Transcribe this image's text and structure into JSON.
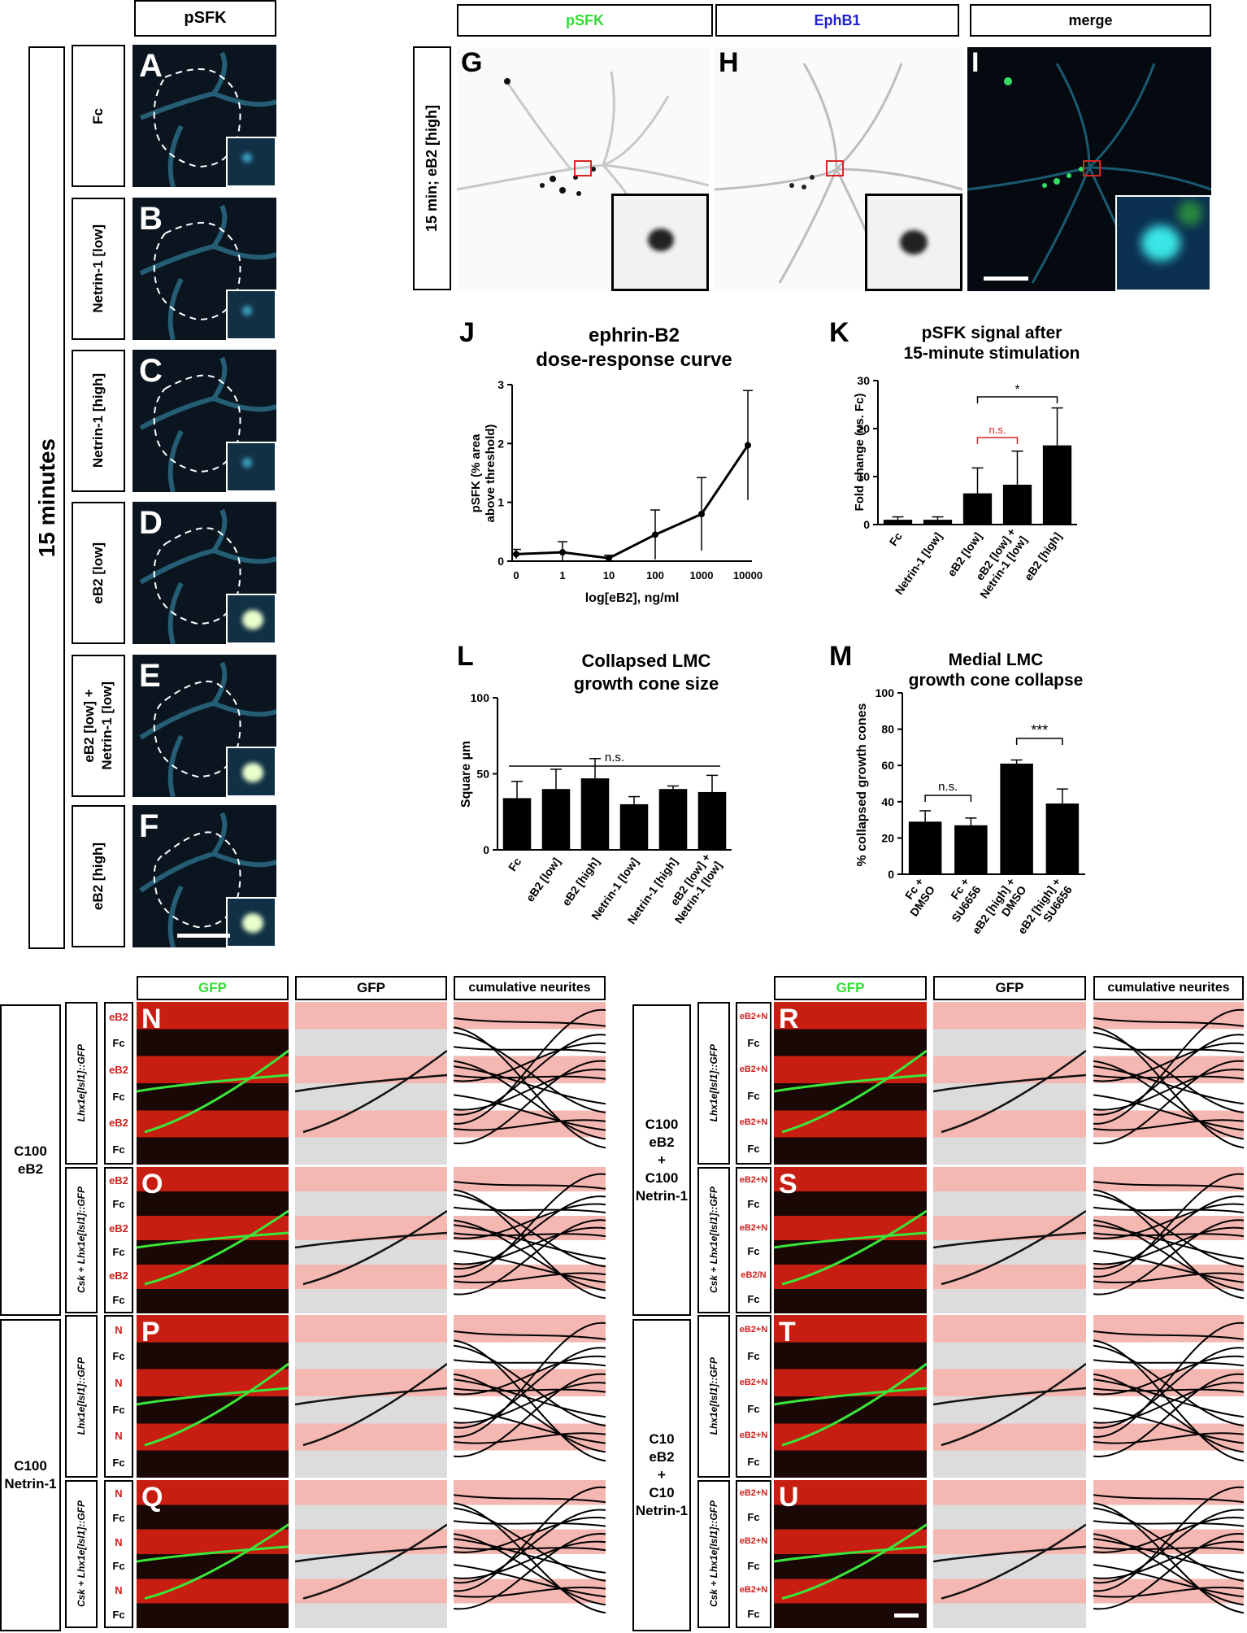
{
  "headers": {
    "top_left": "pSFK",
    "g": "pSFK",
    "h": "EphB1",
    "i": "merge",
    "gfp_green": "GFP",
    "gfp_gray": "GFP",
    "cumulative": "cumulative neurites"
  },
  "colors": {
    "pSFK": "#33dd33",
    "EphB1": "#2222cc",
    "red_label": "#d11f1f",
    "strip_pink": "#f4b7b1"
  },
  "time_label": "15 minutes",
  "g_label": "15 min; eB2 [high]",
  "left_panels": [
    {
      "letter": "A",
      "label": "Fc"
    },
    {
      "letter": "B",
      "label": "Netrin-1 [low]"
    },
    {
      "letter": "C",
      "label": "Netrin-1 [high]"
    },
    {
      "letter": "D",
      "label": "eB2 [low]"
    },
    {
      "letter": "E",
      "label": "eB2 [low] +\nNetrin-1 [low]"
    },
    {
      "letter": "F",
      "label": "eB2 [high]"
    }
  ],
  "image_letters": {
    "G": "G",
    "H": "H",
    "I": "I"
  },
  "charts": {
    "J": {
      "letter": "J",
      "title": "ephrin-B2\ndose-response curve",
      "ylabel": "pSFK (% area\nabove threshold)",
      "xlabel": "log[eB2], ng/ml",
      "ticks_x": [
        "0",
        "1",
        "10",
        "100",
        "1000",
        "10000"
      ],
      "ticks_y": [
        "0",
        "1",
        "2",
        "3"
      ]
    },
    "K": {
      "letter": "K",
      "title": "pSFK signal after\n15-minute stimulation",
      "ylabel": "Fold change (vs. Fc)",
      "ticks_y": [
        "0",
        "10",
        "20",
        "30"
      ],
      "sig_star": "*",
      "sig_ns": "n.s."
    },
    "L": {
      "letter": "L",
      "title": "Collapsed LMC\ngrowth cone size",
      "ylabel": "Square µm",
      "ticks_y": [
        "0",
        "50",
        "100"
      ],
      "sig_ns": "n.s."
    },
    "M": {
      "letter": "M",
      "title": "Medial LMC\ngrowth cone collapse",
      "ylabel": "% collapsed growth cones",
      "ticks_y": [
        "0",
        "20",
        "40",
        "60",
        "80",
        "100"
      ],
      "sig_ns": "n.s.",
      "sig_stars": "***"
    }
  },
  "chart_data": [
    {
      "type": "line",
      "title": "ephrin-B2 dose-response curve",
      "xlabel": "log[eB2], ng/ml",
      "ylabel": "pSFK (% area above threshold)",
      "x": [
        "0",
        "1",
        "10",
        "100",
        "1000",
        "10000"
      ],
      "y": [
        0.12,
        0.15,
        0.05,
        0.45,
        0.8,
        1.97
      ],
      "err": [
        0.08,
        0.18,
        0.05,
        0.42,
        0.62,
        0.93
      ],
      "ylim": [
        0,
        3
      ]
    },
    {
      "type": "bar",
      "title": "pSFK signal after 15-minute stimulation",
      "ylabel": "Fold change (vs. Fc)",
      "categories": [
        "Fc",
        "Netrin-1 [low]",
        "eB2 [low]",
        "eB2 [low] + Netrin-1 [low]",
        "eB2 [high]"
      ],
      "values": [
        1.0,
        1.0,
        6.5,
        8.3,
        16.5
      ],
      "err": [
        0.6,
        0.6,
        5.3,
        7.0,
        7.8
      ],
      "ylim": [
        0,
        30
      ]
    },
    {
      "type": "bar",
      "title": "Collapsed LMC growth cone size",
      "ylabel": "Square µm",
      "categories": [
        "Fc",
        "eB2 [low]",
        "eB2 [high]",
        "Netrin-1 [low]",
        "Netrin-1 [high]",
        "eB2 [low] + Netrin-1 [low]"
      ],
      "values": [
        34,
        40,
        47,
        30,
        40,
        38
      ],
      "err": [
        11,
        13,
        13,
        5,
        2,
        11
      ],
      "ylim": [
        0,
        100
      ]
    },
    {
      "type": "bar",
      "title": "Medial LMC growth cone collapse",
      "ylabel": "% collapsed growth cones",
      "categories": [
        "Fc + DMSO",
        "Fc + SU6656",
        "eB2 [high] + DMSO",
        "eB2 [high] + SU6656"
      ],
      "values": [
        29,
        27,
        61,
        39
      ],
      "err": [
        6,
        4,
        2,
        8
      ],
      "ylim": [
        0,
        100
      ]
    }
  ],
  "bottom": {
    "left_group_top": "C100\neB2",
    "left_group_bottom": "C100\nNetrin-1",
    "right_group_top": "C100\neB2\n+\nC100\nNetrin-1",
    "right_group_bottom": "C10\neB2\n+\nC10\nNetrin-1",
    "geno_gfp": "Lhx1e[Isl1]::GFP",
    "geno_csk": "Csk + Lhx1e[Isl1]::GFP",
    "rows": [
      {
        "letter": "N",
        "labels": [
          "eB2",
          "Fc",
          "eB2",
          "Fc",
          "eB2",
          "Fc"
        ]
      },
      {
        "letter": "O",
        "labels": [
          "eB2",
          "Fc",
          "eB2",
          "Fc",
          "eB2",
          "Fc"
        ]
      },
      {
        "letter": "P",
        "labels": [
          "N",
          "Fc",
          "N",
          "Fc",
          "N",
          "Fc"
        ]
      },
      {
        "letter": "Q",
        "labels": [
          "N",
          "Fc",
          "N",
          "Fc",
          "N",
          "Fc"
        ]
      },
      {
        "letter": "R",
        "labels": [
          "eB2+N",
          "Fc",
          "eB2+N",
          "Fc",
          "eB2+N",
          "Fc"
        ]
      },
      {
        "letter": "S",
        "labels": [
          "eB2+N",
          "Fc",
          "eB2+N",
          "Fc",
          "eB2/N",
          "Fc"
        ]
      },
      {
        "letter": "T",
        "labels": [
          "eB2+N",
          "Fc",
          "eB2+N",
          "Fc",
          "eB2+N",
          "Fc"
        ]
      },
      {
        "letter": "U",
        "labels": [
          "eB2+N",
          "Fc",
          "eB2+N",
          "Fc",
          "eB2+N",
          "Fc"
        ]
      }
    ]
  }
}
